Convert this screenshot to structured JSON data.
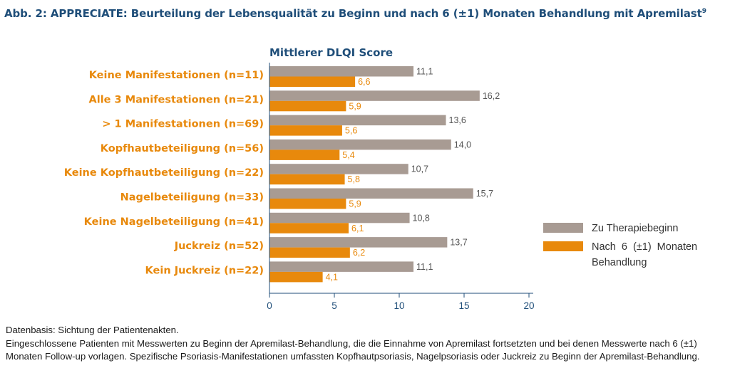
{
  "header": {
    "title": "Abb. 2: APPRECIATE: Beurteilung der Lebensqualität zu Beginn und nach 6 (±1) Monaten Behandlung mit Apremilast",
    "superscript": "9"
  },
  "colors": {
    "title": "#1f4e79",
    "category_label": "#e8890c",
    "series_baseline": "#a89b93",
    "series_followup": "#e8890c",
    "axis": "#1f4e79"
  },
  "chart_data": {
    "type": "bar",
    "orientation": "horizontal",
    "title": "Mittlerer DLQI Score",
    "categories": [
      "Keine Manifestationen (n=11)",
      "Alle 3 Manifestationen (n=21)",
      "> 1 Manifestationen (n=69)",
      "Kopfhautbeteiligung (n=56)",
      "Keine Kopfhautbeteiligung (n=22)",
      "Nagelbeteiligung (n=33)",
      "Keine Nagelbeteiligung (n=41)",
      "Juckreiz (n=52)",
      "Kein Juckreiz (n=22)"
    ],
    "series": [
      {
        "name": "Zu Therapiebeginn",
        "values": [
          11.1,
          16.2,
          13.6,
          14.0,
          10.7,
          15.7,
          10.8,
          13.7,
          11.1
        ],
        "labels": [
          "11,1",
          "16,2",
          "13,6",
          "14,0",
          "10,7",
          "15,7",
          "10,8",
          "13,7",
          "11,1"
        ]
      },
      {
        "name": "Nach 6 (±1) Monaten Behandlung",
        "values": [
          6.6,
          5.9,
          5.6,
          5.4,
          5.8,
          5.9,
          6.1,
          6.2,
          4.1
        ],
        "labels": [
          "6,6",
          "5,9",
          "5,6",
          "5,4",
          "5,8",
          "5,9",
          "6,1",
          "6,2",
          "4,1"
        ]
      }
    ],
    "xlim": [
      0,
      20
    ],
    "xticks": [
      "0",
      "5",
      "10",
      "15",
      "20"
    ],
    "grid": false,
    "legend_position": "right"
  },
  "footnotes": [
    "Datenbasis: Sichtung der Patientenakten.",
    "Eingeschlossene Patienten mit Messwerten zu Beginn der Apremilast-Behandlung, die die Einnahme von Apremilast fortsetzten und bei denen Messwerte nach 6 (±1)",
    "Monaten Follow-up vorlagen. Spezifische Psoriasis-Manifestationen umfassten Kopfhautpsoriasis, Nagelpsoriasis oder Juckreiz zu Beginn der Apremilast-Behandlung."
  ]
}
